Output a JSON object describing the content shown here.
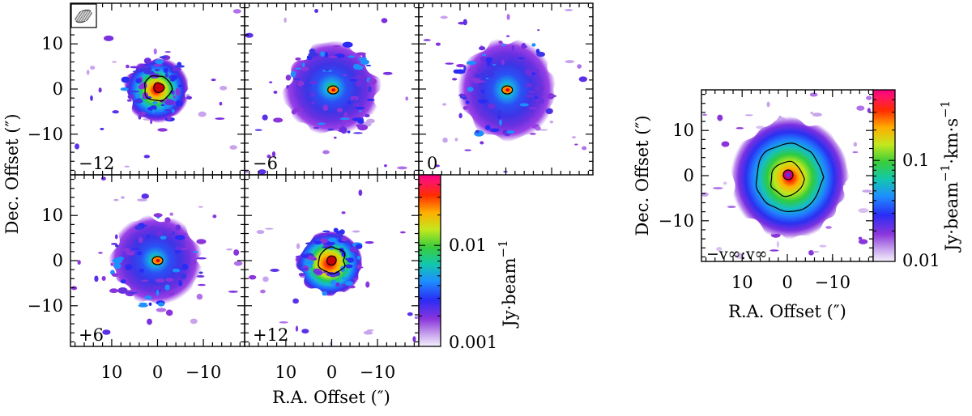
{
  "chart_data": [
    {
      "type": "heatmap",
      "title": "",
      "xlabel": "R.A. Offset (″)",
      "ylabel": "Dec. Offset (″)",
      "xlim": [
        19,
        -19
      ],
      "ylim": [
        -19,
        19
      ],
      "x_ticks": [
        10,
        0,
        -10
      ],
      "x_tick_labels": [
        "10",
        "0",
        "−10"
      ],
      "y_ticks": [
        10,
        0,
        -10
      ],
      "y_tick_labels": [
        "10",
        "0",
        "−10"
      ],
      "colorbar": {
        "label": "Jy·beam",
        "label_sup": "−1",
        "scale": "log",
        "range": [
          0.001,
          0.05
        ],
        "tick_values": [
          0.001,
          0.01
        ],
        "tick_labels": [
          "0.001",
          "0.01"
        ]
      },
      "panels": [
        {
          "velocity_label": "−12",
          "core_x": 0.0,
          "core_y": 0.0,
          "peak_x": -0.3,
          "peak_y": 0.3,
          "envelope_radius": 7,
          "peak_level": 0.045,
          "contour_levels": 2
        },
        {
          "velocity_label": "−6",
          "core_x": -0.3,
          "core_y": -0.2,
          "peak_x": -0.3,
          "peak_y": -0.2,
          "envelope_radius": 10,
          "peak_level": 0.02,
          "contour_levels": 1
        },
        {
          "velocity_label": "0",
          "core_x": 0.0,
          "core_y": 0.0,
          "peak_x": -0.3,
          "peak_y": -0.2,
          "envelope_radius": 11,
          "peak_level": 0.02,
          "contour_levels": 1
        },
        {
          "velocity_label": "+6",
          "core_x": 0.0,
          "core_y": 0.0,
          "peak_x": 0.0,
          "peak_y": 0.0,
          "envelope_radius": 10,
          "peak_level": 0.012,
          "contour_levels": 1
        },
        {
          "velocity_label": "+12",
          "core_x": 0.0,
          "core_y": 0.0,
          "peak_x": 0.0,
          "peak_y": 0.0,
          "envelope_radius": 7,
          "peak_level": 0.04,
          "contour_levels": 2
        }
      ],
      "beam": {
        "major_arcsec": 5,
        "minor_arcsec": 3.5,
        "pa_deg": -30
      }
    },
    {
      "type": "heatmap",
      "title": "",
      "panel_label": "−v∞:v∞",
      "xlabel": "R.A. Offset (″)",
      "ylabel": "Dec. Offset (″)",
      "xlim": [
        19,
        -19
      ],
      "ylim": [
        -19,
        19
      ],
      "x_ticks": [
        10,
        0,
        -10
      ],
      "x_tick_labels": [
        "10",
        "0",
        "−10"
      ],
      "y_ticks": [
        10,
        0,
        -10
      ],
      "y_tick_labels": [
        "10",
        "0",
        "−10"
      ],
      "envelope_radius": 12,
      "colorbar": {
        "label": "Jy·beam",
        "label_sup1": "−1",
        "label_mid": "·km·s",
        "label_sup2": "−1",
        "scale": "log",
        "range": [
          0.01,
          0.5
        ],
        "tick_values": [
          0.01,
          0.1
        ],
        "tick_labels": [
          "0.01",
          "0.1"
        ]
      }
    }
  ]
}
